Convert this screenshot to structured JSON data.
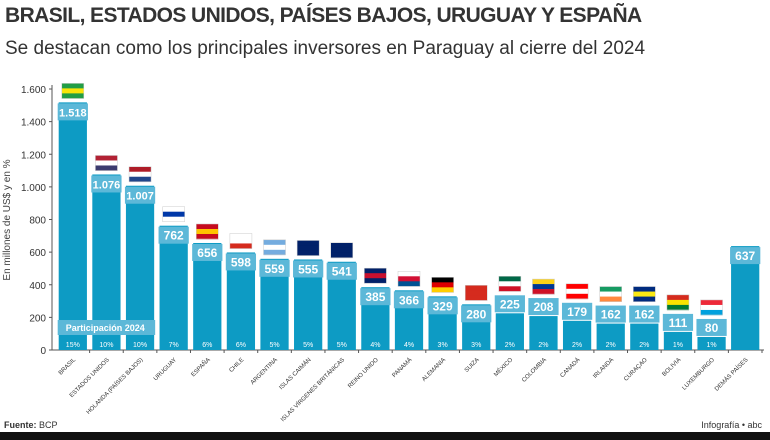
{
  "title": "BRASIL, ESTADOS UNIDOS, PAÍSES BAJOS, URUGUAY Y ESPAÑA",
  "subtitle": "Se destacan como los principales inversores en Paraguay al cierre del 2024",
  "source_label": "Fuente:",
  "source": "BCP",
  "credit": "Infografía • abc",
  "chart_data": {
    "type": "bar",
    "ylabel": "En millones de US$ y en %",
    "ylim": [
      0,
      1600
    ],
    "yticks": [
      0,
      200,
      400,
      600,
      800,
      1000,
      1200,
      1400,
      1600
    ],
    "ytick_labels": [
      "0",
      "200",
      "400",
      "600",
      "800",
      "1.000",
      "1.200",
      "1.400",
      "1.600"
    ],
    "share_label": "Participación 2024",
    "bar_color": "#0d9bc4",
    "categories": [
      "BRASIL",
      "ESTADOS UNIDOS",
      "HOLANDA (PAÍSES BAJOS)",
      "URUGUAY",
      "ESPAÑA",
      "CHILE",
      "ARGENTINA",
      "ISLAS CAIMÁN",
      "ISLAS VÍRGENES BRITÁNICAS",
      "REINO UNIDO",
      "PANAMÁ",
      "ALEMANIA",
      "SUIZA",
      "MÉXICO",
      "COLOMBIA",
      "CANADÁ",
      "IRLANDA",
      "CURAÇAO",
      "BOLIVIA",
      "LUXEMBURGO",
      "DEMÁS PAÍSES"
    ],
    "values": [
      1518,
      1076,
      1007,
      762,
      656,
      598,
      559,
      555,
      541,
      385,
      366,
      329,
      280,
      225,
      208,
      179,
      162,
      162,
      111,
      80,
      637
    ],
    "value_labels": [
      "1.518",
      "1.076",
      "1.007",
      "762",
      "656",
      "598",
      "559",
      "555",
      "541",
      "385",
      "366",
      "329",
      "280",
      "225",
      "208",
      "179",
      "162",
      "162",
      "111",
      "80",
      "637"
    ],
    "shares": [
      "15%",
      "10%",
      "10%",
      "7%",
      "6%",
      "6%",
      "5%",
      "5%",
      "5%",
      "4%",
      "4%",
      "3%",
      "3%",
      "2%",
      "2%",
      "2%",
      "2%",
      "2%",
      "1%",
      "1%",
      ""
    ],
    "flags": [
      [
        "#229e45",
        "#f8e509",
        "#229e45"
      ],
      [
        "#b22234",
        "#fff",
        "#3c3b6e"
      ],
      [
        "#ae1c28",
        "#fff",
        "#21468b"
      ],
      [
        "#fff",
        "#0038a8",
        "#fff"
      ],
      [
        "#c60b1e",
        "#ffc400",
        "#c60b1e"
      ],
      [
        "#fff",
        "#fff",
        "#d52b1e"
      ],
      [
        "#74acdf",
        "#fff",
        "#74acdf"
      ],
      [
        "#012169",
        "#012169",
        "#012169"
      ],
      [
        "#012169",
        "#012169",
        "#012169"
      ],
      [
        "#012169",
        "#c8102e",
        "#012169"
      ],
      [
        "#fff",
        "#d21034",
        "#005293"
      ],
      [
        "#000",
        "#dd0000",
        "#ffce00"
      ],
      [
        "#d52b1e",
        "#d52b1e",
        "#d52b1e"
      ],
      [
        "#006847",
        "#fff",
        "#ce1126"
      ],
      [
        "#fcd116",
        "#003893",
        "#ce1126"
      ],
      [
        "#ff0000",
        "#fff",
        "#ff0000"
      ],
      [
        "#169b62",
        "#fff",
        "#ff883e"
      ],
      [
        "#002b7f",
        "#f9e814",
        "#002b7f"
      ],
      [
        "#d52b1e",
        "#f9e300",
        "#007934"
      ],
      [
        "#ed2939",
        "#fff",
        "#00a1de"
      ],
      null
    ]
  }
}
